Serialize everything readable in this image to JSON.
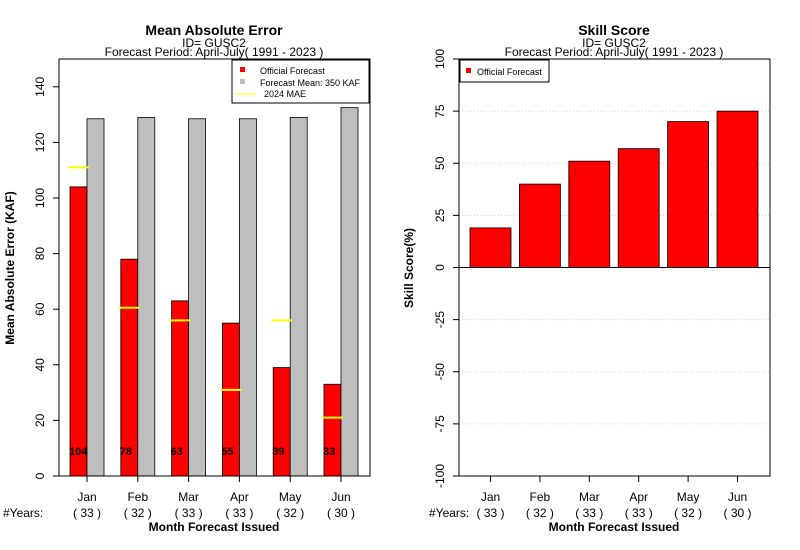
{
  "chart_data": [
    {
      "type": "bar",
      "title": "Mean Absolute Error",
      "subtitle_id": "ID= GUSC2",
      "subtitle_period": "Forecast Period: April-July( 1991 - 2023 )",
      "ylabel": "Mean Absolute Error (KAF)",
      "xlabel": "Month Forecast Issued",
      "ylim": [
        0,
        150
      ],
      "yticks": [
        0,
        20,
        40,
        60,
        80,
        100,
        120,
        140
      ],
      "categories": [
        "Jan",
        "Feb",
        "Mar",
        "Apr",
        "May",
        "Jun"
      ],
      "years_prefix": "#Years:",
      "years": [
        "( 33 )",
        "( 32 )",
        "( 33 )",
        "( 33 )",
        "( 32 )",
        "( 30 )"
      ],
      "series": [
        {
          "name": "Official Forecast",
          "color": "#ff0000",
          "values": [
            104,
            78,
            63,
            55,
            39,
            33
          ]
        },
        {
          "name": "Forecast Mean: 350 KAF",
          "color": "#bebebe",
          "values": [
            128.5,
            129,
            128.5,
            128.5,
            129,
            132.5
          ]
        },
        {
          "name": "2024  MAE",
          "color": "#ffff00",
          "values": [
            111,
            60.5,
            56,
            31,
            56,
            21
          ]
        }
      ],
      "bar_labels": [
        "104",
        "78",
        "63",
        "55",
        "39",
        "33"
      ],
      "legend": "top-right",
      "grid": false
    },
    {
      "type": "bar",
      "title": "Skill Score",
      "subtitle_id": "ID= GUSC2",
      "subtitle_period": "Forecast Period: April-July( 1991 - 2023 )",
      "ylabel": "Skill Score(%)",
      "xlabel": "Month Forecast Issued",
      "ylim": [
        -100,
        100
      ],
      "yticks": [
        -100,
        -75,
        -50,
        -25,
        0,
        25,
        50,
        75,
        100
      ],
      "categories": [
        "Jan",
        "Feb",
        "Mar",
        "Apr",
        "May",
        "Jun"
      ],
      "years_prefix": "#Years:",
      "years": [
        "( 33 )",
        "( 32 )",
        "( 33 )",
        "( 33 )",
        "( 32 )",
        "( 30 )"
      ],
      "series": [
        {
          "name": "Official Forecast",
          "color": "#ff0000",
          "values": [
            19,
            40,
            51,
            57,
            70,
            75
          ]
        }
      ],
      "legend": "top-left",
      "grid": true
    }
  ]
}
